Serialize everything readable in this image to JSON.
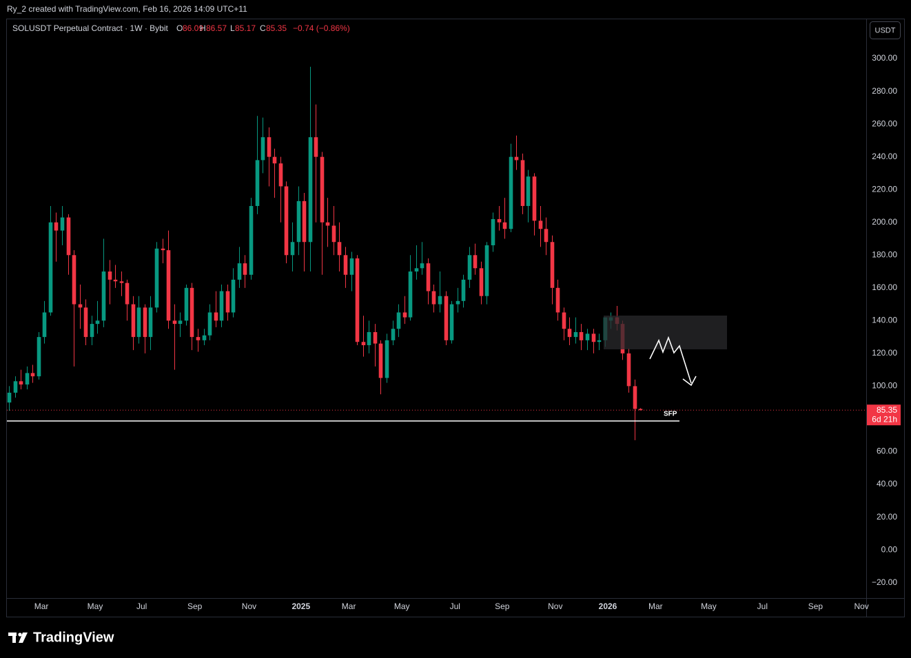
{
  "header": {
    "credit": "Ry_2 created with TradingView.com, Feb 16, 2026 14:09 UTC+11",
    "symbol": "SOLUSDT Perpetual Contract · 1W · Bybit",
    "ohlc_labels": [
      "O",
      "H",
      "L",
      "C"
    ],
    "change": "−0.74 (−0.86%)",
    "currency": "USDT"
  },
  "footer": {
    "brand": "TradingView"
  },
  "chart_data": {
    "type": "candlestick",
    "up_color": "#089981",
    "down_color": "#f23645",
    "x": [
      0,
      1,
      2,
      3,
      4,
      5,
      6,
      7,
      8,
      9,
      10,
      11,
      12,
      13,
      14,
      15,
      16,
      17,
      18,
      19,
      20,
      21,
      22,
      23,
      24,
      25,
      26,
      27,
      28,
      29,
      30,
      31,
      32,
      33,
      34,
      35,
      36,
      37,
      38,
      39,
      40,
      41,
      42,
      43,
      44,
      45,
      46,
      47,
      48,
      49,
      50,
      51,
      52,
      53,
      54,
      55,
      56,
      57,
      58,
      59,
      60,
      61,
      62,
      63,
      64,
      65,
      66,
      67,
      68,
      69,
      70,
      71,
      72,
      73,
      74,
      75,
      76,
      77,
      78,
      79,
      80,
      81,
      82,
      83,
      84,
      85,
      86,
      87,
      88,
      89,
      90,
      91,
      92,
      93,
      94,
      95,
      96,
      97,
      98,
      99,
      100,
      101,
      102,
      103,
      104,
      105,
      106,
      107
    ],
    "open": [
      90,
      96,
      103,
      101,
      108,
      106,
      130,
      145,
      200,
      195,
      203,
      180,
      150,
      148,
      130,
      138,
      140,
      170,
      165,
      164,
      163,
      150,
      130,
      148,
      130,
      148,
      184,
      183,
      140,
      138,
      140,
      160,
      130,
      128,
      131,
      145,
      140,
      158,
      145,
      165,
      175,
      168,
      210,
      238,
      252,
      240,
      236,
      222,
      180,
      188,
      213,
      188,
      252,
      240,
      200,
      198,
      188,
      180,
      168,
      178,
      127,
      125,
      133,
      126,
      105,
      128,
      135,
      145,
      142,
      170,
      172,
      175,
      158,
      150,
      155,
      128,
      150,
      152,
      165,
      180,
      172,
      155,
      186,
      202,
      200,
      196,
      240,
      238,
      210,
      228,
      201,
      196,
      188,
      160,
      145,
      135,
      130,
      133,
      128,
      132,
      127,
      128,
      140,
      142,
      138,
      120,
      100,
      86.09
    ],
    "high": [
      100,
      106,
      110,
      112,
      113,
      133,
      152,
      210,
      206,
      210,
      205,
      183,
      162,
      153,
      143,
      152,
      190,
      177,
      174,
      170,
      165,
      155,
      155,
      150,
      155,
      188,
      190,
      195,
      150,
      145,
      162,
      163,
      135,
      135,
      150,
      158,
      162,
      162,
      172,
      185,
      180,
      215,
      265,
      264,
      258,
      245,
      240,
      225,
      200,
      222,
      218,
      295,
      272,
      243,
      215,
      210,
      200,
      185,
      182,
      180,
      143,
      140,
      138,
      128,
      132,
      140,
      150,
      155,
      180,
      186,
      188,
      178,
      162,
      170,
      158,
      152,
      160,
      168,
      185,
      187,
      176,
      188,
      206,
      210,
      215,
      248,
      253,
      242,
      232,
      230,
      210,
      203,
      192,
      165,
      148,
      142,
      142,
      138,
      135,
      135,
      132,
      142,
      145,
      149,
      140,
      123,
      104,
      86.57
    ],
    "low": [
      85,
      93,
      98,
      98,
      102,
      104,
      126,
      143,
      176,
      186,
      168,
      112,
      135,
      125,
      125,
      132,
      136,
      150,
      160,
      155,
      140,
      122,
      126,
      120,
      122,
      145,
      175,
      135,
      110,
      130,
      137,
      122,
      121,
      125,
      128,
      136,
      136,
      140,
      142,
      160,
      160,
      165,
      205,
      230,
      222,
      215,
      200,
      175,
      170,
      180,
      170,
      170,
      200,
      168,
      185,
      180,
      170,
      160,
      158,
      125,
      118,
      120,
      112,
      95,
      102,
      125,
      130,
      138,
      140,
      165,
      168,
      150,
      145,
      145,
      125,
      126,
      145,
      148,
      160,
      168,
      150,
      150,
      182,
      195,
      190,
      194,
      232,
      205,
      200,
      192,
      185,
      180,
      150,
      140,
      128,
      125,
      126,
      122,
      122,
      120,
      122,
      124,
      135,
      134,
      116,
      96,
      67,
      85.17
    ],
    "close": [
      96,
      103,
      101,
      108,
      106,
      130,
      145,
      200,
      195,
      203,
      180,
      150,
      148,
      130,
      138,
      140,
      170,
      165,
      164,
      163,
      150,
      130,
      148,
      130,
      148,
      184,
      183,
      140,
      138,
      140,
      160,
      130,
      128,
      131,
      145,
      140,
      158,
      145,
      165,
      175,
      168,
      210,
      238,
      252,
      240,
      236,
      222,
      180,
      188,
      213,
      188,
      252,
      240,
      200,
      198,
      188,
      180,
      168,
      178,
      127,
      125,
      133,
      126,
      105,
      128,
      135,
      145,
      142,
      170,
      172,
      175,
      158,
      150,
      155,
      128,
      150,
      152,
      165,
      180,
      172,
      155,
      186,
      202,
      200,
      196,
      240,
      238,
      210,
      228,
      201,
      196,
      188,
      160,
      145,
      135,
      130,
      133,
      128,
      132,
      127,
      128,
      142,
      142,
      138,
      120,
      100,
      86.09,
      85.35
    ],
    "xlim": [
      -0.35,
      145.3
    ],
    "ylim": [
      -29.4,
      324
    ],
    "yticks": [
      {
        "value": 300,
        "label": "300.00"
      },
      {
        "value": 280,
        "label": "280.00"
      },
      {
        "value": 260,
        "label": "260.00"
      },
      {
        "value": 240,
        "label": "240.00"
      },
      {
        "value": 220,
        "label": "220.00"
      },
      {
        "value": 200,
        "label": "200.00"
      },
      {
        "value": 180,
        "label": "180.00"
      },
      {
        "value": 160,
        "label": "160.00"
      },
      {
        "value": 140,
        "label": "140.00"
      },
      {
        "value": 120,
        "label": "120.00"
      },
      {
        "value": 100,
        "label": "100.00"
      },
      {
        "value": 60,
        "label": "60.00"
      },
      {
        "value": 40,
        "label": "40.00"
      },
      {
        "value": 20,
        "label": "20.00"
      },
      {
        "value": 0,
        "label": "0.00"
      },
      {
        "value": -20,
        "label": "−20.00"
      }
    ],
    "xticks": [
      {
        "value": 5.5,
        "label": "Mar"
      },
      {
        "value": 14.6,
        "label": "May"
      },
      {
        "value": 22.5,
        "label": "Jul"
      },
      {
        "value": 31.5,
        "label": "Sep"
      },
      {
        "value": 40.7,
        "label": "Nov"
      },
      {
        "value": 49.5,
        "label": "2025"
      },
      {
        "value": 57.6,
        "label": "Mar"
      },
      {
        "value": 66.6,
        "label": "May"
      },
      {
        "value": 75.6,
        "label": "Jul"
      },
      {
        "value": 83.6,
        "label": "Sep"
      },
      {
        "value": 92.6,
        "label": "Nov"
      },
      {
        "value": 101.5,
        "label": "2026"
      },
      {
        "value": 109.6,
        "label": "Mar"
      },
      {
        "value": 118.6,
        "label": "May"
      },
      {
        "value": 127.7,
        "label": "Jul"
      },
      {
        "value": 136.7,
        "label": "Sep"
      },
      {
        "value": 144.5,
        "label": "Nov"
      }
    ],
    "countdown": "6d 21h",
    "annotation": "SFP"
  }
}
